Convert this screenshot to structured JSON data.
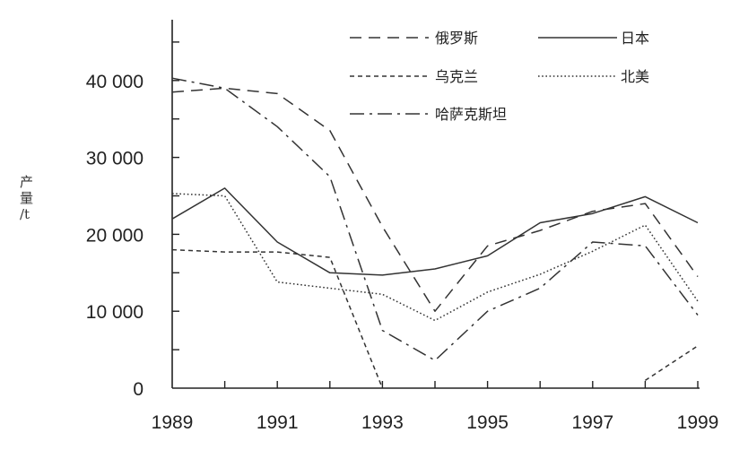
{
  "chart_data": {
    "type": "line",
    "title": "",
    "xlabel": "",
    "ylabel": [
      "产",
      "量",
      "/t"
    ],
    "xlim": [
      1989,
      1999
    ],
    "ylim": [
      0,
      47000
    ],
    "x_ticks": [
      "1989",
      "1991",
      "1993",
      "1995",
      "1997",
      "1999"
    ],
    "y_ticks": [
      "0",
      "10 000",
      "20 000",
      "30 000",
      "40 000"
    ],
    "grid": false,
    "legend_position": "top-right",
    "series": [
      {
        "name": "俄罗斯",
        "style": "dashed",
        "points": [
          [
            1989,
            38500
          ],
          [
            1990,
            39000
          ],
          [
            1991,
            38300
          ],
          [
            1992,
            33500
          ],
          [
            1993,
            21000
          ],
          [
            1994,
            10000
          ],
          [
            1995,
            18500
          ],
          [
            1996,
            20500
          ],
          [
            1997,
            23000
          ],
          [
            1998,
            24000
          ],
          [
            1999,
            14500
          ]
        ]
      },
      {
        "name": "日本",
        "style": "solid",
        "points": [
          [
            1989,
            22000
          ],
          [
            1990,
            26000
          ],
          [
            1991,
            19000
          ],
          [
            1992,
            15000
          ],
          [
            1993,
            14700
          ],
          [
            1994,
            15500
          ],
          [
            1995,
            17200
          ],
          [
            1996,
            21500
          ],
          [
            1997,
            22700
          ],
          [
            1998,
            24900
          ],
          [
            1999,
            21500
          ]
        ]
      },
      {
        "name": "乌克兰",
        "style": "short-dashed",
        "segments": [
          [
            [
              1989,
              18000
            ],
            [
              1990,
              17700
            ],
            [
              1991,
              17700
            ],
            [
              1992,
              17000
            ],
            [
              1993,
              0
            ]
          ],
          [
            [
              1998,
              1000
            ],
            [
              1999,
              5500
            ]
          ]
        ]
      },
      {
        "name": "北美",
        "style": "dotted",
        "points": [
          [
            1989,
            25300
          ],
          [
            1990,
            25000
          ],
          [
            1991,
            13800
          ],
          [
            1992,
            13000
          ],
          [
            1993,
            12200
          ],
          [
            1994,
            8800
          ],
          [
            1995,
            12500
          ],
          [
            1996,
            14800
          ],
          [
            1997,
            17800
          ],
          [
            1998,
            21200
          ],
          [
            1999,
            11300
          ]
        ]
      },
      {
        "name": "哈萨克斯坦",
        "style": "dash-dot",
        "points": [
          [
            1989,
            40300
          ],
          [
            1990,
            39000
          ],
          [
            1991,
            34000
          ],
          [
            1992,
            27500
          ],
          [
            1993,
            7500
          ],
          [
            1994,
            3600
          ],
          [
            1995,
            10000
          ],
          [
            1996,
            13000
          ],
          [
            1997,
            19000
          ],
          [
            1998,
            18500
          ],
          [
            1999,
            9500
          ]
        ]
      }
    ]
  }
}
